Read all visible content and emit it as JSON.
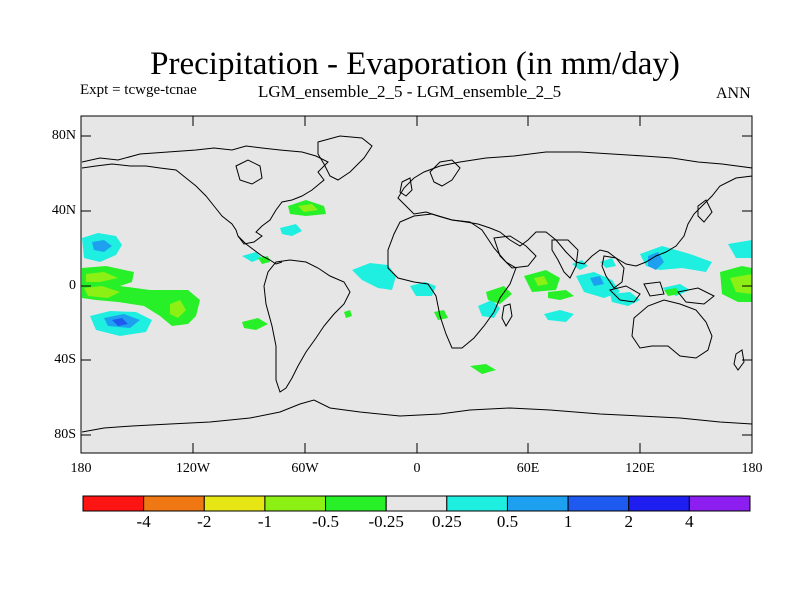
{
  "title": "Precipitation - Evaporation (in mm/day)",
  "expt_label": "Expt = tcwge-tcnae",
  "ensemble_label": "LGM_ensemble_2_5 - LGM_ensemble_2_5",
  "season": "ANN",
  "colors": {
    "ocean": "#e6e6e6",
    "coast": "#000000",
    "frame": "#000000"
  },
  "axes": {
    "lat_ticks": [
      "80N",
      "40N",
      "0",
      "40S",
      "80S"
    ],
    "lon_ticks": [
      "180",
      "120W",
      "60W",
      "0",
      "60E",
      "120E",
      "180"
    ]
  },
  "colorbar": {
    "colors": [
      "#ff1414",
      "#f07814",
      "#e6e614",
      "#8cf014",
      "#28f028",
      "#e6e6e6",
      "#1fefe0",
      "#1ea0f0",
      "#1e5af0",
      "#1e1ef0",
      "#8c1ef0"
    ],
    "labels": [
      "-4",
      "-2",
      "-1",
      "-0.5",
      "-0.25",
      "0.25",
      "0.5",
      "1",
      "2",
      "4"
    ]
  }
}
